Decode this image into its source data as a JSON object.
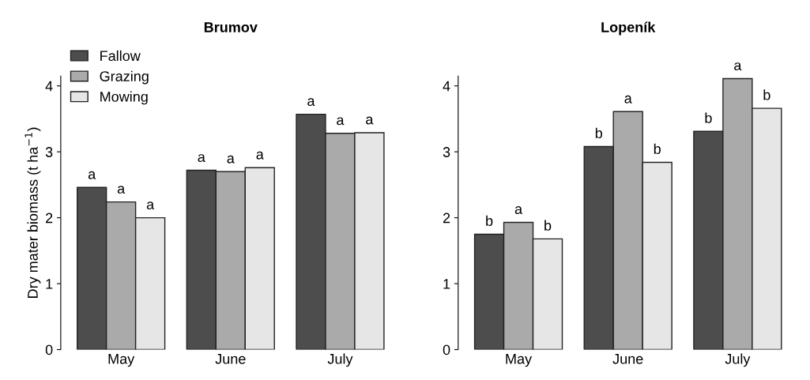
{
  "chart_data": [
    {
      "type": "bar",
      "title": "Brumov",
      "ylabel": "Dry mater biomass (t ha$^{−1}$)",
      "categories": [
        "May",
        "June",
        "July"
      ],
      "ylim": [
        0,
        4.15
      ],
      "yticks": [
        0,
        1,
        2,
        3,
        4
      ],
      "grid": false,
      "legend": "top left",
      "series": [
        {
          "name": "Fallow",
          "color": "#4d4d4d",
          "values": [
            2.46,
            2.72,
            3.57
          ],
          "value_labels": [
            "a",
            "a",
            "a"
          ]
        },
        {
          "name": "Grazing",
          "color": "#aaaaaa",
          "values": [
            2.24,
            2.7,
            3.28
          ],
          "value_labels": [
            "a",
            "a",
            "a"
          ]
        },
        {
          "name": "Mowing",
          "color": "#e6e6e6",
          "values": [
            2.0,
            2.76,
            3.29
          ],
          "value_labels": [
            "a",
            "a",
            "a"
          ]
        }
      ]
    },
    {
      "type": "bar",
      "title": "Lopeník",
      "categories": [
        "May",
        "June",
        "July"
      ],
      "ylim": [
        0,
        4.15
      ],
      "yticks": [
        0,
        1,
        2,
        3,
        4
      ],
      "grid": false,
      "legend": false,
      "series": [
        {
          "color": "#4d4d4d",
          "values": [
            1.75,
            3.08,
            3.31
          ],
          "value_labels": [
            "b",
            "b",
            "b"
          ]
        },
        {
          "color": "#aaaaaa",
          "values": [
            1.93,
            3.61,
            4.11
          ],
          "value_labels": [
            "a",
            "a",
            "a"
          ]
        },
        {
          "color": "#e6e6e6",
          "values": [
            1.68,
            2.84,
            3.66
          ],
          "value_labels": [
            "b",
            "b",
            "b"
          ]
        }
      ]
    }
  ]
}
